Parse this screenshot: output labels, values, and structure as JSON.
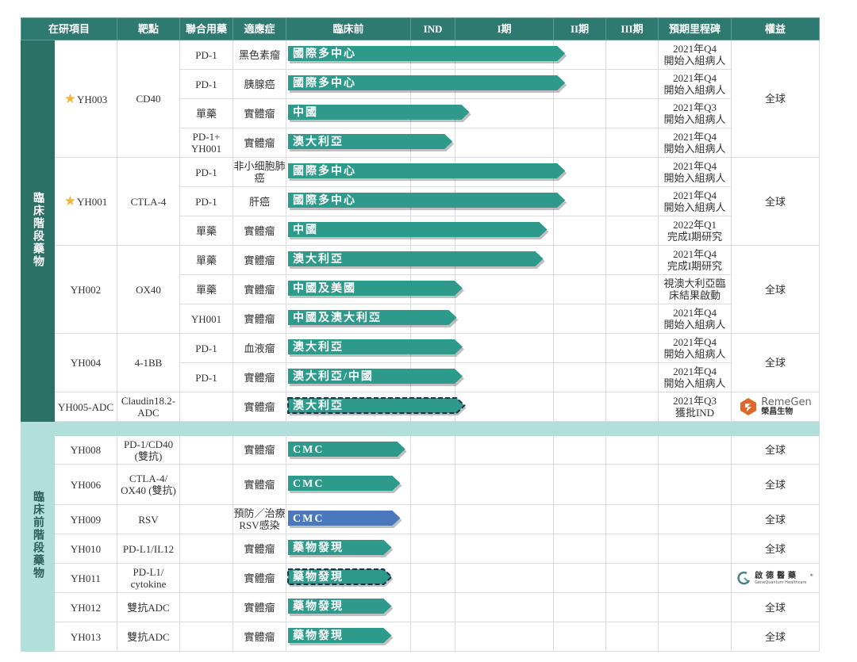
{
  "header": [
    "在研項目",
    "靶點",
    "聯合用藥",
    "適應症",
    "臨床前",
    "IND",
    "I期",
    "II期",
    "III期",
    "預期里程碑",
    "權益"
  ],
  "colors": {
    "header": "#2e7a70",
    "bar": "#2d9a8b",
    "bar_alt": "#4a78bd",
    "dashed_border": "#1e3446",
    "side_clinical": "#2b7166",
    "side_preclinical": "#b3dfda",
    "star": "#f0b43a"
  },
  "stage_scale_note": "bar progress in stage units: 0=preclinical start, 1=IND start, 2=Phase I start, 3=Phase II start, 4=Phase III start, 5=end",
  "clinical": {
    "label": "臨床階段藥物",
    "groups": [
      {
        "project": "YH003",
        "star": true,
        "target": "CD40",
        "rights": "全球",
        "rows": [
          {
            "combo": "PD-1",
            "indication": "黑色素瘤",
            "bar": "國際多中心",
            "progress": 3.23,
            "milestone": [
              "2021年Q4",
              "開始入組病人"
            ]
          },
          {
            "combo": "PD-1",
            "indication": "胰腺癌",
            "bar": "國際多中心",
            "progress": 3.23,
            "milestone": [
              "2021年Q4",
              "開始入組病人"
            ]
          },
          {
            "combo": "單藥",
            "indication": "實體瘤",
            "bar": "中國",
            "progress": 2.15,
            "milestone": [
              "2021年Q3",
              "開始入組病人"
            ]
          },
          {
            "combo": "PD-1+ YH001",
            "indication": "實體瘤",
            "bar": "澳大利亞",
            "progress": 1.95,
            "milestone": [
              "2021年Q4",
              "開始入組病人"
            ]
          }
        ]
      },
      {
        "project": "YH001",
        "star": true,
        "target": "CTLA-4",
        "rights": "全球",
        "rows": [
          {
            "combo": "PD-1",
            "indication": "非小细胞肺癌",
            "bar": "國際多中心",
            "progress": 3.23,
            "milestone": [
              "2021年Q4",
              "開始入組病人"
            ]
          },
          {
            "combo": "PD-1",
            "indication": "肝癌",
            "bar": "國際多中心",
            "progress": 3.23,
            "milestone": [
              "2021年Q4",
              "開始入組病人"
            ]
          },
          {
            "combo": "單藥",
            "indication": "實體瘤",
            "bar": "中國",
            "progress": 2.94,
            "milestone": [
              "2022年Q1",
              "完成I期研究"
            ]
          }
        ]
      },
      {
        "project": "YH002",
        "star": false,
        "target": "OX40",
        "rights": "全球",
        "rows": [
          {
            "combo": "單藥",
            "indication": "實體瘤",
            "bar": "澳大利亞",
            "progress": 2.9,
            "milestone": [
              "2021年Q4",
              "完成I期研究"
            ]
          },
          {
            "combo": "單藥",
            "indication": "實體瘤",
            "bar": "中國及美國",
            "progress": 2.08,
            "milestone": [
              "視澳大利亞臨",
              "床結果啟動"
            ]
          },
          {
            "combo": "YH001",
            "indication": "實體瘤",
            "bar": "中國及澳大利亞",
            "progress": 2.02,
            "milestone": [
              "2021年Q4",
              "開始入組病人"
            ]
          }
        ]
      },
      {
        "project": "YH004",
        "star": false,
        "target": "4-1BB",
        "rights": "全球",
        "rows": [
          {
            "combo": "PD-1",
            "indication": "血液瘤",
            "bar": "澳大利亞",
            "progress": 2.08,
            "milestone": [
              "2021年Q4",
              "開始入組病人"
            ]
          },
          {
            "combo": "PD-1",
            "indication": "實體瘤",
            "bar": "澳大利亞/中國",
            "progress": 2.08,
            "milestone": [
              "2021年Q4",
              "開始入組病人"
            ]
          }
        ]
      },
      {
        "project": "YH005-ADC",
        "star": false,
        "target": "Claudin18.2- ADC",
        "rights_logo": {
          "name": "RemeGen",
          "cn": "榮昌生物"
        },
        "rows": [
          {
            "combo": "",
            "indication": "實體瘤",
            "bar": "澳大利亞",
            "progress": 2.1,
            "dashed": true,
            "milestone": [
              "2021年Q3",
              "獲批IND"
            ]
          }
        ]
      }
    ]
  },
  "preclinical": {
    "label": "臨床前階段藥物",
    "rows": [
      {
        "project": "YH008",
        "target": "PD-1/CD40 (雙抗)",
        "indication": "實體瘤",
        "bar": "CMC",
        "progress": 0.96,
        "rights": "全球"
      },
      {
        "project": "YH006",
        "target": "CTLA-4/ OX40 (雙抗)",
        "indication": "實體瘤",
        "bar": "CMC",
        "progress": 0.92,
        "rights": "全球"
      },
      {
        "project": "YH009",
        "target": "RSV",
        "indication": "預防／治療 RSV感染",
        "bar": "CMC",
        "progress": 0.92,
        "alt": true,
        "rights": "全球"
      },
      {
        "project": "YH010",
        "target": "PD-L1/IL12",
        "indication": "實體瘤",
        "bar": "藥物發現",
        "progress": 0.85,
        "rights": "全球"
      },
      {
        "project": "YH011",
        "target": "PD-L1/ cytokine",
        "indication": "實體瘤",
        "bar": "藥物發現",
        "progress": 0.85,
        "dashed": true,
        "rights_logo": {
          "cn": "啟德醫藥",
          "en": "GeneQuantum Healthcare",
          "mark": "*"
        }
      },
      {
        "project": "YH012",
        "target": "雙抗ADC",
        "indication": "實體瘤",
        "bar": "藥物發現",
        "progress": 0.85,
        "rights": "全球"
      },
      {
        "project": "YH013",
        "target": "雙抗ADC",
        "indication": "實體瘤",
        "bar": "藥物發現",
        "progress": 0.85,
        "rights": "全球"
      }
    ]
  }
}
